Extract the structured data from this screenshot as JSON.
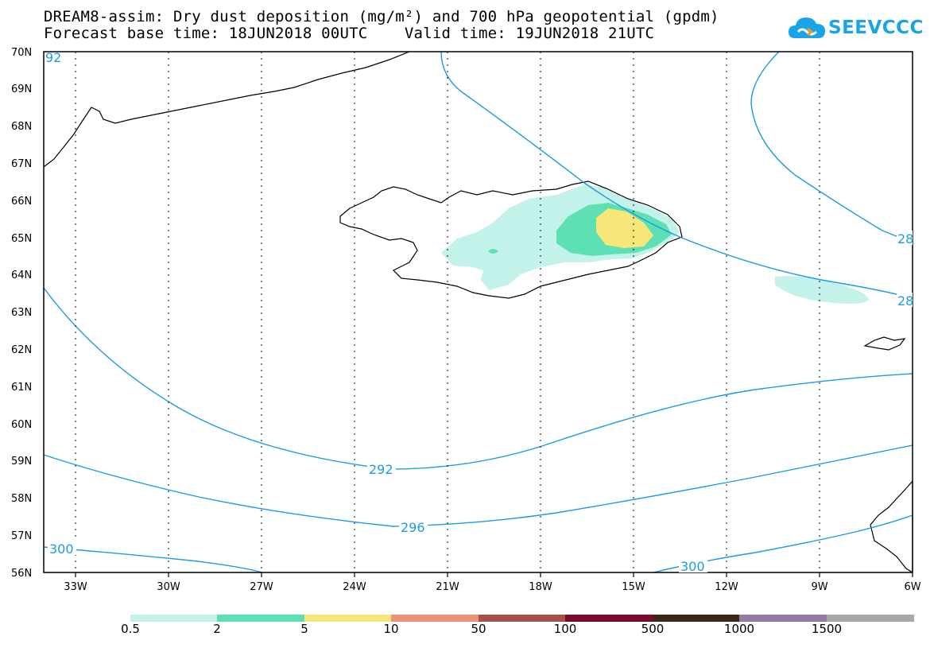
{
  "header": {
    "title_line1": "DREAM8-assim: Dry dust deposition (mg/m²) and 700 hPa geopotential (gpdm)",
    "title_line2": "Forecast base time: 18JUN2018 00UTC    Valid time: 19JUN2018 21UTC",
    "logo_text": "SEEVCCC",
    "logo_icon": "cloud-icon"
  },
  "map": {
    "lat_labels": [
      "70N",
      "69N",
      "68N",
      "67N",
      "66N",
      "65N",
      "64N",
      "63N",
      "62N",
      "61N",
      "60N",
      "59N",
      "58N",
      "57N",
      "56N"
    ],
    "lon_labels": [
      "33W",
      "30W",
      "27W",
      "24W",
      "21W",
      "18W",
      "15W",
      "12W",
      "9W",
      "6W"
    ],
    "contour_labels": [
      {
        "id": "c292",
        "text": "292"
      },
      {
        "id": "c296",
        "text": "296"
      },
      {
        "id": "c300a",
        "text": "300"
      },
      {
        "id": "c300b",
        "text": "300"
      },
      {
        "id": "c28a",
        "text": "28"
      },
      {
        "id": "c28b",
        "text": "28"
      },
      {
        "id": "c292top",
        "text": "92"
      }
    ],
    "colors": {
      "contour": "#1b9be6",
      "coast": "#000000",
      "grid": "#000000"
    }
  },
  "legend": {
    "labels": [
      "0.5",
      "2",
      "5",
      "10",
      "50",
      "100",
      "500",
      "1000",
      "1500"
    ],
    "colors": [
      "#c3f2ea",
      "#5ee0b5",
      "#f7e67a",
      "#eb9473",
      "#a6504a",
      "#7b0a2c",
      "#3a2714",
      "#967aa6",
      "#a8a8a8"
    ]
  }
}
